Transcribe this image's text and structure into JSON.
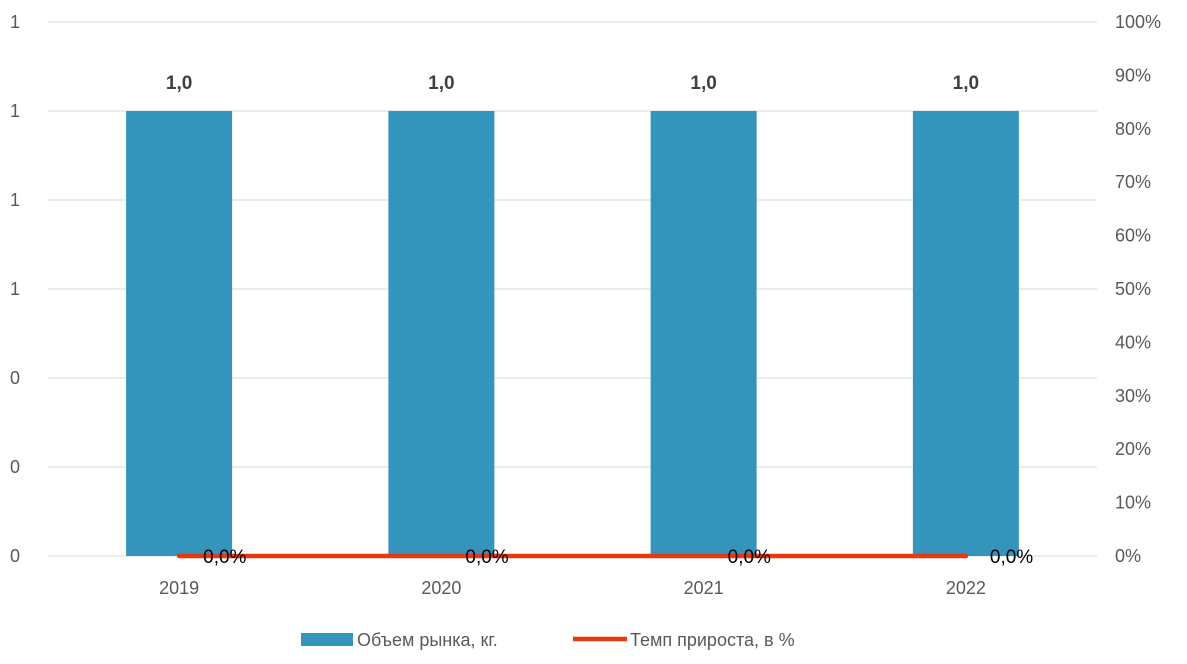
{
  "chart_data": {
    "type": "bar",
    "categories": [
      "2019",
      "2020",
      "2021",
      "2022"
    ],
    "series": [
      {
        "name": "Объем рынка, кг.",
        "type": "bar",
        "axis": "left",
        "values": [
          1.0,
          1.0,
          1.0,
          1.0
        ],
        "labels": [
          "1,0",
          "1,0",
          "1,0",
          "1,0"
        ],
        "color": "#3594BB"
      },
      {
        "name": "Темп прироста, в %",
        "type": "line",
        "axis": "right",
        "values": [
          0.0,
          0.0,
          0.0,
          0.0
        ],
        "labels": [
          "0,0%",
          "0,0%",
          "0,0%",
          "0,0%"
        ],
        "color": "#E8380D"
      }
    ],
    "y_left": {
      "ylim": [
        0,
        1.2
      ],
      "tick_values": [
        0,
        0.2,
        0.4,
        0.6,
        0.8,
        1.0,
        1.2
      ],
      "tick_labels": [
        "0",
        "0",
        "0",
        "1",
        "1",
        "1",
        "1"
      ]
    },
    "y_right": {
      "ylim": [
        0,
        100
      ],
      "tick_values": [
        0,
        10,
        20,
        30,
        40,
        50,
        60,
        70,
        80,
        90,
        100
      ],
      "tick_labels": [
        "0%",
        "10%",
        "20%",
        "30%",
        "40%",
        "50%",
        "60%",
        "70%",
        "80%",
        "90%",
        "100%"
      ]
    },
    "grid": true,
    "gridline_color": "#D9D9D9",
    "legend_position": "bottom"
  }
}
